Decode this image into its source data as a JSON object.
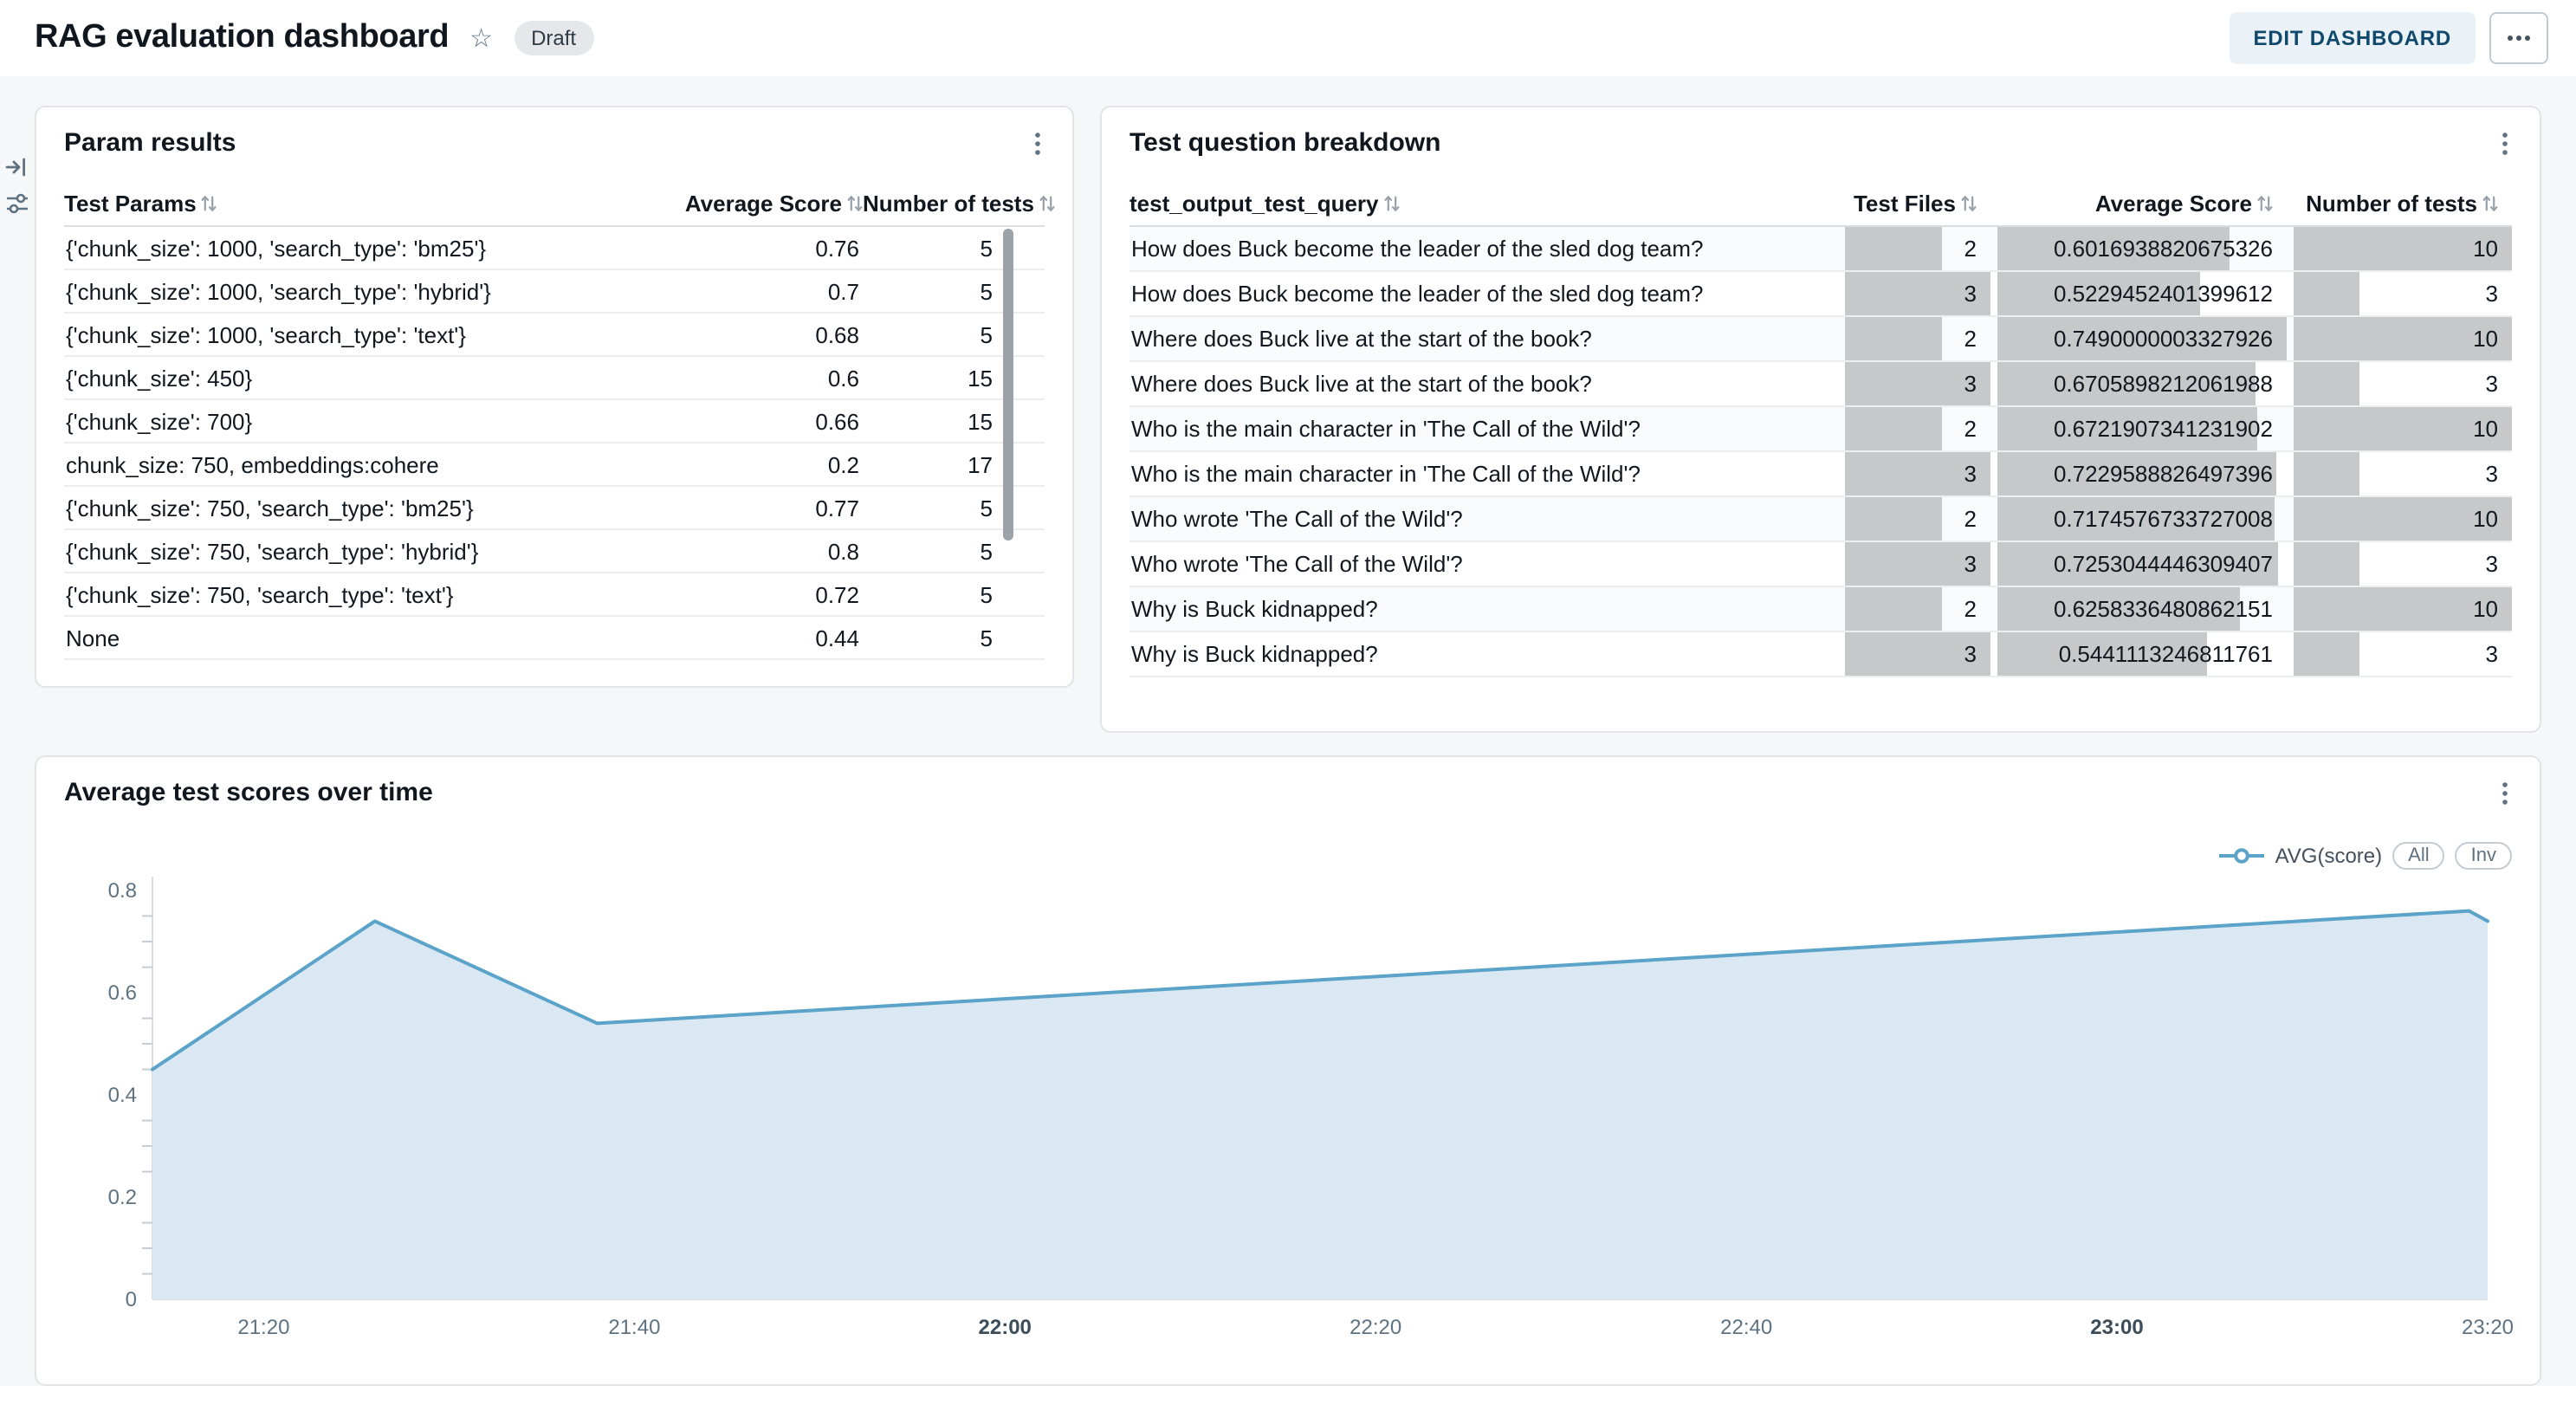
{
  "header": {
    "title": "RAG evaluation dashboard",
    "status_badge": "Draft",
    "edit_button": "EDIT DASHBOARD"
  },
  "param_results": {
    "title": "Param results",
    "columns": [
      "Test Params",
      "Average Score",
      "Number of tests"
    ],
    "rows": [
      {
        "params": "{'chunk_size': 1000, 'search_type': 'bm25'}",
        "avg": "0.76",
        "n": "5"
      },
      {
        "params": "{'chunk_size': 1000, 'search_type': 'hybrid'}",
        "avg": "0.7",
        "n": "5"
      },
      {
        "params": "{'chunk_size': 1000, 'search_type': 'text'}",
        "avg": "0.68",
        "n": "5"
      },
      {
        "params": "{'chunk_size': 450}",
        "avg": "0.6",
        "n": "15"
      },
      {
        "params": "{'chunk_size': 700}",
        "avg": "0.66",
        "n": "15"
      },
      {
        "params": "chunk_size: 750, embeddings:cohere",
        "avg": "0.2",
        "n": "17"
      },
      {
        "params": "{'chunk_size': 750, 'search_type': 'bm25'}",
        "avg": "0.77",
        "n": "5"
      },
      {
        "params": "{'chunk_size': 750, 'search_type': 'hybrid'}",
        "avg": "0.8",
        "n": "5"
      },
      {
        "params": "{'chunk_size': 750, 'search_type': 'text'}",
        "avg": "0.72",
        "n": "5"
      },
      {
        "params": "None",
        "avg": "0.44",
        "n": "5"
      }
    ]
  },
  "question_breakdown": {
    "title": "Test question breakdown",
    "columns": [
      "test_output_test_query",
      "Test Files",
      "Average Score",
      "Number of tests"
    ],
    "bar_color": "#c6c8ca",
    "rows": [
      {
        "query": "How does Buck become the leader of the sled dog team?",
        "files": "2",
        "avg": "0.6016938820675326",
        "n": "10"
      },
      {
        "query": "How does Buck become the leader of the sled dog team?",
        "files": "3",
        "avg": "0.5229452401399612",
        "n": "3"
      },
      {
        "query": "Where does Buck live at the start of the book?",
        "files": "2",
        "avg": "0.7490000003327926",
        "n": "10"
      },
      {
        "query": "Where does Buck live at the start of the book?",
        "files": "3",
        "avg": "0.6705898212061988",
        "n": "3"
      },
      {
        "query": "Who is the main character in 'The Call of the Wild'?",
        "files": "2",
        "avg": "0.6721907341231902",
        "n": "10"
      },
      {
        "query": "Who is the main character in 'The Call of the Wild'?",
        "files": "3",
        "avg": "0.7229588826497396",
        "n": "3"
      },
      {
        "query": "Who wrote 'The Call of the Wild'?",
        "files": "2",
        "avg": "0.7174576733727008",
        "n": "10"
      },
      {
        "query": "Who wrote 'The Call of the Wild'?",
        "files": "3",
        "avg": "0.7253044446309407",
        "n": "3"
      },
      {
        "query": "Why is Buck kidnapped?",
        "files": "2",
        "avg": "0.6258336480862151",
        "n": "10"
      },
      {
        "query": "Why is Buck kidnapped?",
        "files": "3",
        "avg": "0.5441113246811761",
        "n": "3"
      }
    ]
  },
  "chart": {
    "title": "Average test scores over time",
    "legend": {
      "series_label": "AVG(score)",
      "all_button": "All",
      "inv_button": "Inv"
    }
  },
  "chart_data": {
    "type": "area",
    "title": "Average test scores over time",
    "series": [
      {
        "name": "AVG(score)",
        "points": [
          [
            "21:14",
            0.45
          ],
          [
            "21:26",
            0.74
          ],
          [
            "21:38",
            0.54
          ],
          [
            "23:19",
            0.76
          ],
          [
            "23:20",
            0.74
          ]
        ]
      }
    ],
    "x_ticks": [
      "21:20",
      "21:40",
      "22:00",
      "22:20",
      "22:40",
      "23:00",
      "23:20"
    ],
    "emphasized_x_ticks": [
      "22:00",
      "23:00"
    ],
    "y_ticks": [
      "0",
      "0.2",
      "0.4",
      "0.6",
      "0.8"
    ],
    "y_minor_step": 0.05,
    "xlim": [
      "21:14",
      "23:20"
    ],
    "ylim": [
      0,
      0.8
    ],
    "grid": false,
    "legend_position": "top-right",
    "line_color": "#5ba3c9",
    "fill_color": "#d9e8f2"
  }
}
